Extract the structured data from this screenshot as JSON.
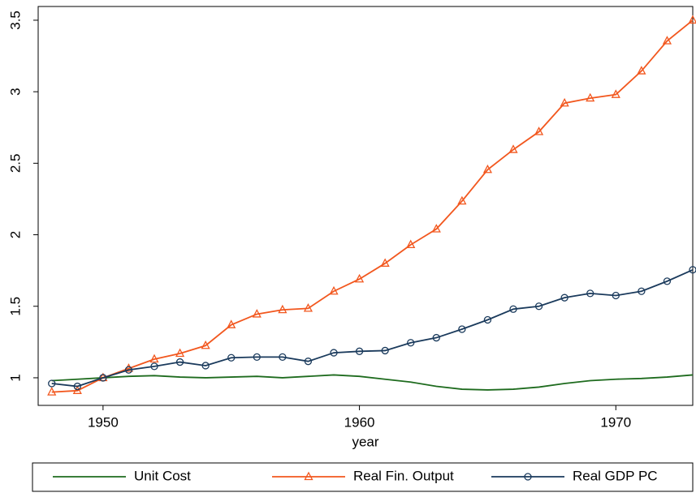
{
  "chart_data": {
    "type": "line",
    "x_label": "year",
    "x": [
      1948,
      1949,
      1950,
      1951,
      1952,
      1953,
      1954,
      1955,
      1956,
      1957,
      1958,
      1959,
      1960,
      1961,
      1962,
      1963,
      1964,
      1965,
      1966,
      1967,
      1968,
      1969,
      1970,
      1971,
      1972,
      1973
    ],
    "series": [
      {
        "name": "Unit Cost",
        "color": "#1e6b1e",
        "marker": "none",
        "values": [
          0.98,
          0.99,
          1.0,
          1.01,
          1.015,
          1.005,
          1.0,
          1.005,
          1.01,
          1.0,
          1.01,
          1.02,
          1.01,
          0.99,
          0.97,
          0.94,
          0.92,
          0.915,
          0.92,
          0.935,
          0.96,
          0.98,
          0.99,
          0.995,
          1.005,
          1.02
        ]
      },
      {
        "name": "Real Fin. Output",
        "color": "#f2571e",
        "marker": "triangle",
        "values": [
          0.9,
          0.91,
          1.0,
          1.065,
          1.13,
          1.17,
          1.225,
          1.37,
          1.445,
          1.475,
          1.485,
          1.605,
          1.69,
          1.8,
          1.93,
          2.04,
          2.235,
          2.455,
          2.595,
          2.72,
          2.92,
          2.955,
          2.98,
          3.145,
          3.355,
          3.5
        ]
      },
      {
        "name": "Real GDP PC",
        "color": "#1a3a5c",
        "marker": "circle",
        "values": [
          0.96,
          0.94,
          1.0,
          1.055,
          1.08,
          1.11,
          1.085,
          1.14,
          1.145,
          1.145,
          1.115,
          1.175,
          1.185,
          1.19,
          1.245,
          1.28,
          1.34,
          1.405,
          1.48,
          1.5,
          1.56,
          1.59,
          1.575,
          1.605,
          1.675,
          1.755
        ]
      }
    ],
    "xlim": [
      1947.47,
      1973
    ],
    "xticks": [
      1950,
      1960,
      1970
    ],
    "ylim": [
      0.807,
      3.596
    ],
    "yticks": [
      1,
      1.5,
      2,
      2.5,
      3,
      3.5
    ],
    "legend": "bottom"
  }
}
